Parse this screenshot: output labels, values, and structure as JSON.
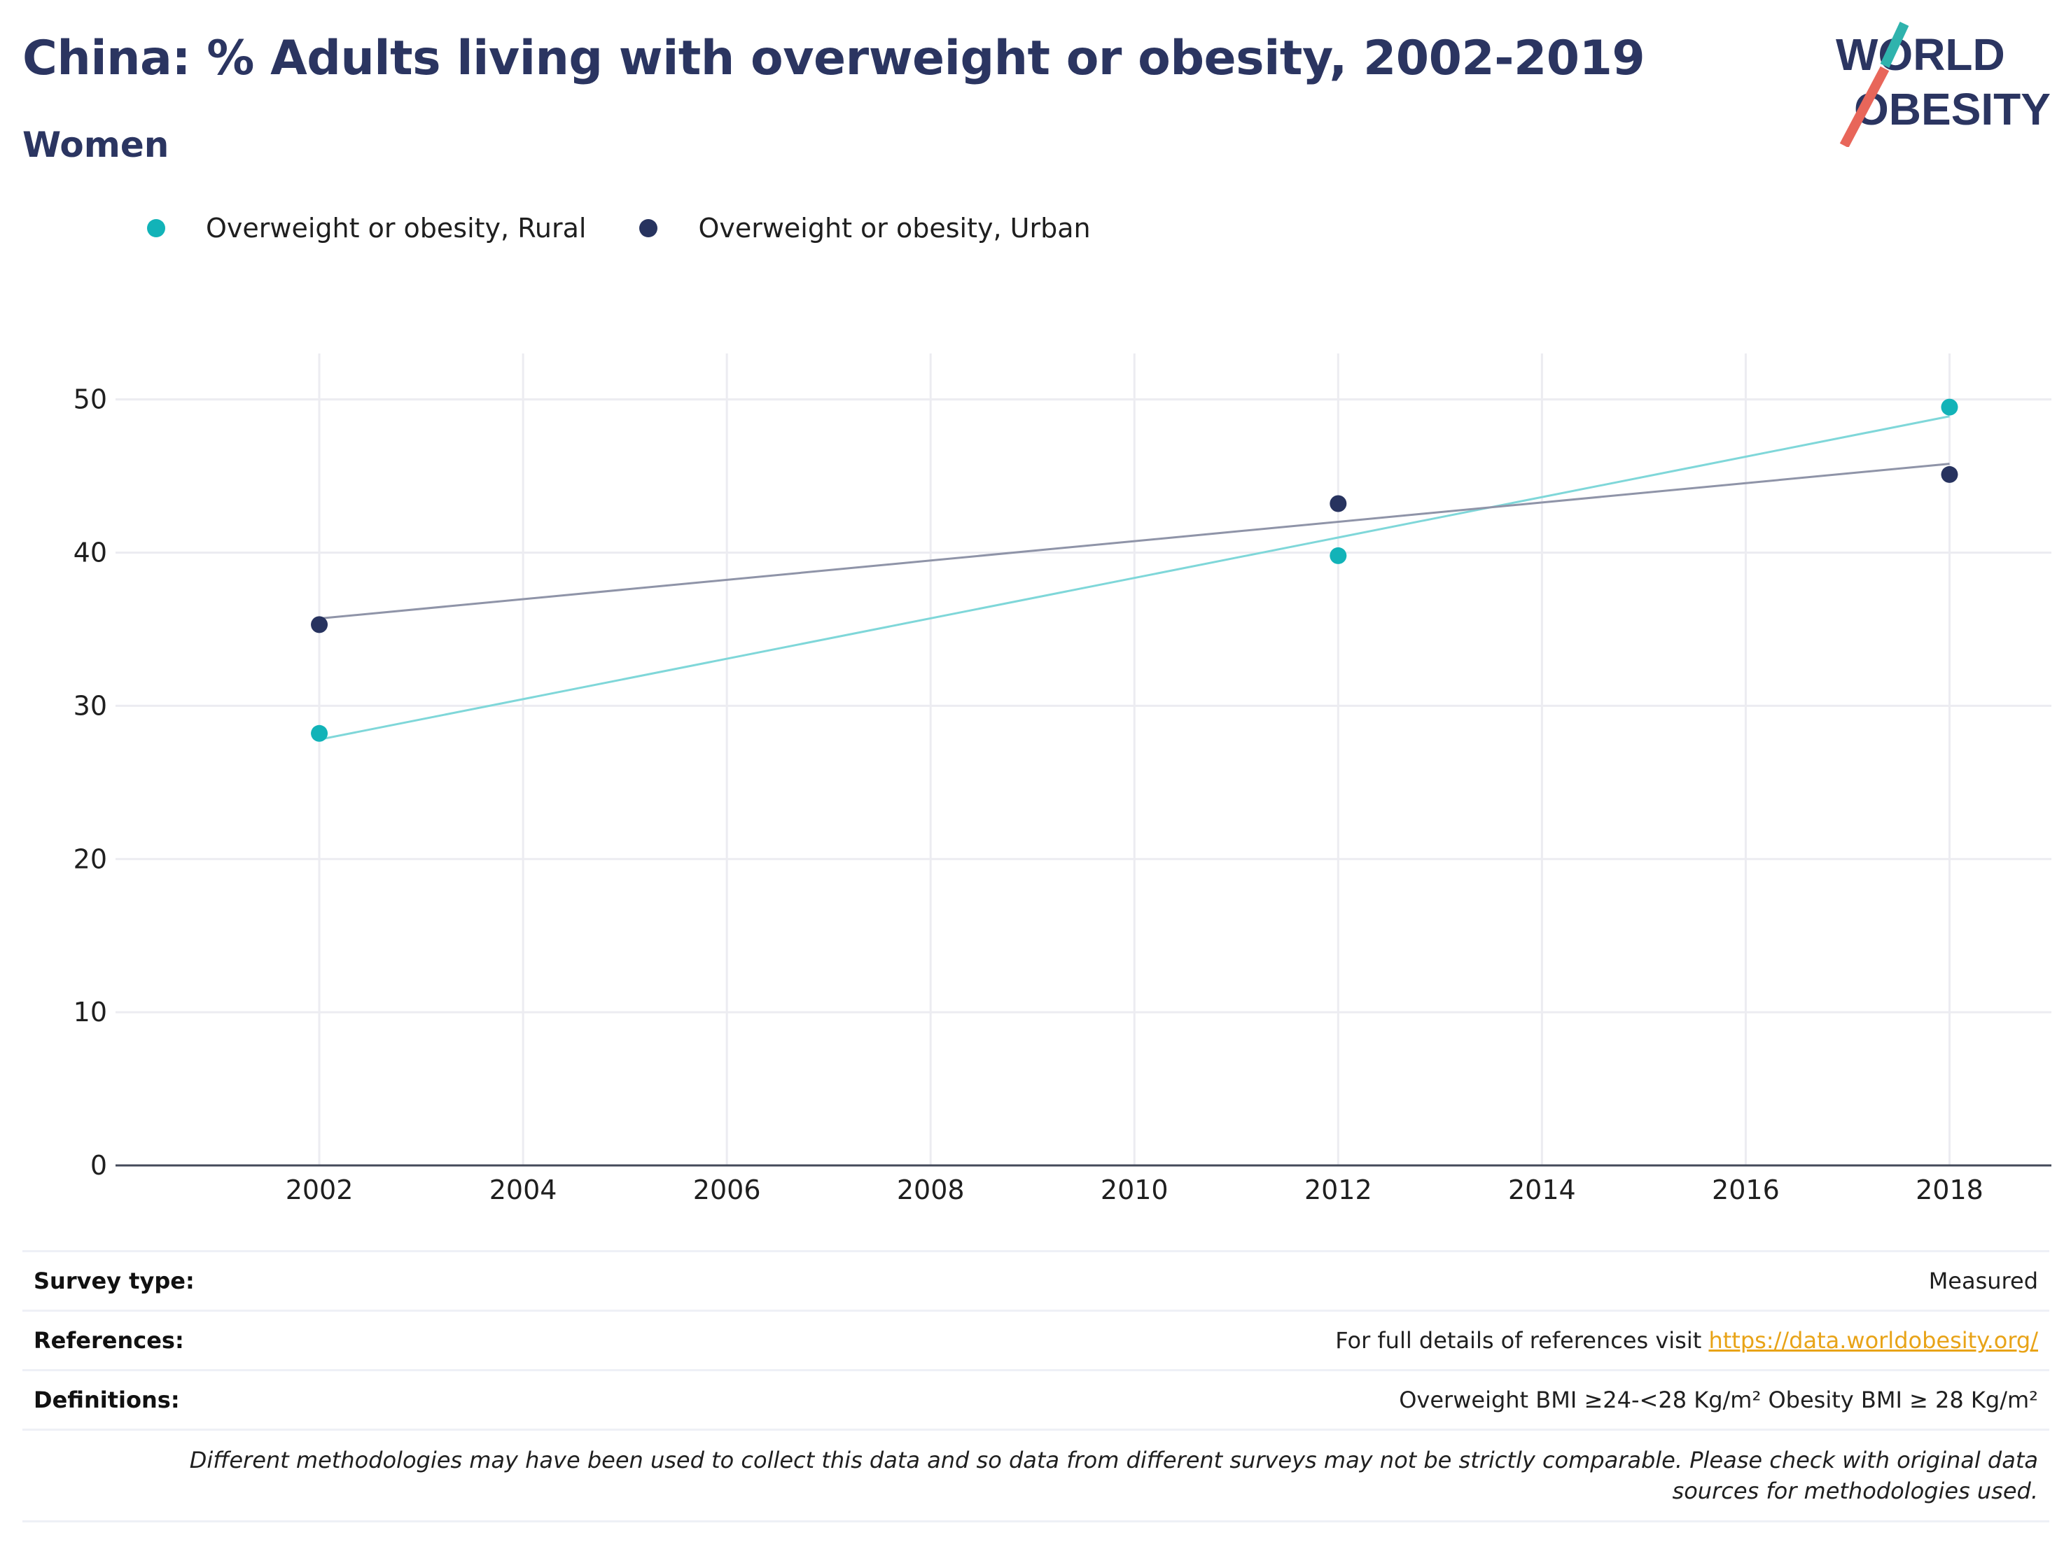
{
  "title": "China: % Adults living with overweight or obesity, 2002-2019",
  "subtitle": "Women",
  "logo": {
    "line1": "WORLD",
    "line2": "OBESITY"
  },
  "legend": [
    {
      "label": "Overweight or obesity, Rural",
      "color": "#12b3b8"
    },
    {
      "label": "Overweight or obesity, Urban",
      "color": "#27335f"
    }
  ],
  "chart_data": {
    "type": "scatter",
    "title": "China: % Adults living with overweight or obesity, 2002-2019",
    "subtitle": "Women",
    "xlabel": "",
    "ylabel": "",
    "xlim": [
      2000,
      2019
    ],
    "ylim": [
      0,
      53
    ],
    "x_ticks": [
      2002,
      2004,
      2006,
      2008,
      2010,
      2012,
      2014,
      2016,
      2018
    ],
    "y_ticks": [
      0,
      10,
      20,
      30,
      40,
      50
    ],
    "grid": true,
    "legend_position": "top-left",
    "series": [
      {
        "name": "Overweight or obesity, Rural",
        "color": "#12b3b8",
        "trend_color": "#7fd7d9",
        "points": [
          {
            "x": 2002,
            "y": 28.2
          },
          {
            "x": 2012,
            "y": 39.8
          },
          {
            "x": 2018,
            "y": 49.5
          }
        ],
        "trendline": [
          {
            "x": 2002,
            "y": 27.8
          },
          {
            "x": 2018,
            "y": 48.9
          }
        ]
      },
      {
        "name": "Overweight or obesity, Urban",
        "color": "#27335f",
        "trend_color": "#8f94a8",
        "points": [
          {
            "x": 2002,
            "y": 35.3
          },
          {
            "x": 2012,
            "y": 43.2
          },
          {
            "x": 2018,
            "y": 45.1
          }
        ],
        "trendline": [
          {
            "x": 2002,
            "y": 35.7
          },
          {
            "x": 2018,
            "y": 45.8
          }
        ]
      }
    ]
  },
  "info": {
    "survey_label": "Survey type:",
    "survey_value": "Measured",
    "references_label": "References:",
    "references_text": "For full details of references visit ",
    "references_link": "https://data.worldobesity.org/",
    "definitions_label": "Definitions:",
    "definitions_value": "Overweight BMI ≥24-<28 Kg/m² Obesity BMI ≥ 28 Kg/m²",
    "note": "Different methodologies may have been used to collect this data and so data from different surveys may not be strictly comparable. Please check with original data sources for methodologies used."
  }
}
